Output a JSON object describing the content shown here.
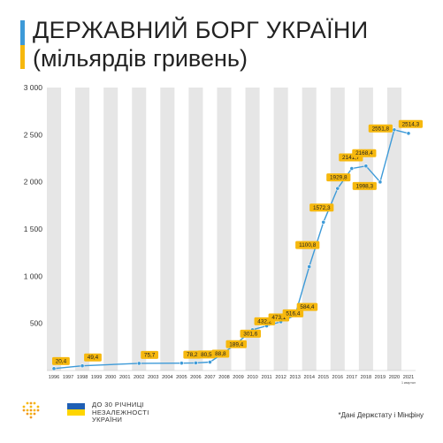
{
  "header": {
    "title": "ДЕРЖАВНИЙ БОРГ УКРАЇНИ",
    "subtitle": "(мільярдів гривень)"
  },
  "colors": {
    "accent_blue": "#3d9ad8",
    "accent_yellow": "#f6b80e",
    "flag_blue": "#1f5fb4",
    "flag_yellow": "#ffd500",
    "text_dark": "#222222",
    "stripe": "#e6e6e6"
  },
  "chart_data": {
    "type": "line",
    "x": [
      "1996",
      "1997",
      "1998",
      "1999",
      "2000",
      "2001",
      "2002",
      "2003",
      "2004",
      "2005",
      "2006",
      "2007",
      "2008",
      "2009",
      "2010",
      "2011",
      "2012",
      "2013",
      "2014",
      "2015",
      "2016",
      "2017",
      "2018",
      "2019",
      "2020",
      "2021"
    ],
    "series": [
      {
        "values": [
          20.4,
          null,
          49.4,
          null,
          null,
          null,
          75.7,
          null,
          null,
          78.2,
          80.5,
          88.8,
          189.4,
          301.6,
          432.2,
          473.1,
          516.4,
          584.4,
          1100.8,
          1572.3,
          1929.8,
          2141.7,
          2168.4,
          1998.3,
          2551.8,
          2514.3
        ],
        "labels": [
          "20,4",
          "",
          "49,4",
          "",
          "",
          "",
          "75,7",
          "",
          "",
          "78,2",
          "80,5",
          "88,8",
          "189,4",
          "301,6",
          "432,2",
          "473,1",
          "516,4",
          "584,4",
          "1100,8",
          "1572,3",
          "1929,8",
          "2141,7",
          "2168,4",
          "1998,3",
          "2551,8",
          "2514,3"
        ]
      }
    ],
    "ylim": [
      0,
      3000
    ],
    "y_ticks": [
      500,
      1000,
      1500,
      2000,
      2500,
      3000
    ],
    "y_tick_labels": [
      "500",
      "1 000",
      "1 500",
      "2 000",
      "2 500",
      "3 000"
    ],
    "x_note": "1 квартал",
    "grid": "alternating vertical stripes",
    "legend": "none"
  },
  "footer": {
    "anniversary_lines": [
      "ДО 30 РІЧНИЦІ",
      "НЕЗАЛЕЖНОСТІ",
      "УКРАЇНИ"
    ],
    "source": "*Дані Держстату і Мінфіну",
    "logo_icon": "dots-trident-logo",
    "flag_icon": "ukraine-flag"
  }
}
